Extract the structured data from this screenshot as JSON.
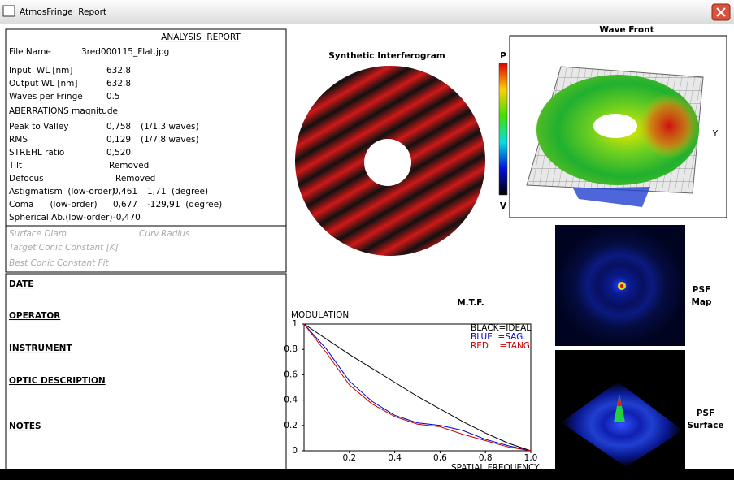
{
  "window": {
    "title": "AtmosFringe  Report"
  },
  "report": {
    "title": "ANALYSIS  REPORT",
    "rows": [
      [
        "File Name",
        "3red000115_Flat.jpg"
      ],
      [
        "Input  WL [nm]",
        "632.8"
      ],
      [
        "Output WL [nm]",
        "632.8"
      ],
      [
        "Waves per Fringe",
        "0.5"
      ]
    ],
    "section": "ABERRATIONS magnitude",
    "aberrations": [
      [
        "Peak to Valley",
        "0,758",
        "(1/1,3 waves)"
      ],
      [
        "RMS",
        "0,129",
        "(1/7,8 waves)"
      ],
      [
        "STREHL ratio",
        "0,520"
      ],
      [
        "Tilt",
        "Removed"
      ],
      [
        "Defocus",
        "Removed"
      ],
      [
        "Astigmatism  (low-order)",
        "0,461",
        "1,71  (degree)"
      ],
      [
        "Coma      (low-order)",
        "0,677",
        "-129,91  (degree)"
      ],
      [
        "Spherical Ab.(low-order)",
        "-0,470"
      ]
    ],
    "surface": {
      "diam": "Surface Diam",
      "radius": "Curv.Radius",
      "target_conic": "Target Conic Constant [K]",
      "best_conic": "Best Conic Constant Fit"
    },
    "fields": [
      "DATE",
      "OPERATOR",
      "INSTRUMENT",
      "OPTIC DESCRIPTION",
      "NOTES"
    ]
  },
  "interferogram": {
    "title": "Synthetic Interferogram"
  },
  "colorbar": {
    "top": "P",
    "bottom": "V"
  },
  "wavefront": {
    "title": "Wave Front",
    "axis": "Y"
  },
  "psf_map": {
    "lines": [
      "PSF",
      "Map"
    ]
  },
  "psf_surface": {
    "lines": [
      "PSF",
      "Surface"
    ]
  },
  "chart_data": {
    "type": "line",
    "title": "M.T.F.",
    "y_label": "MODULATION",
    "x_label": "SPATIAL FREQUENCY",
    "x": [
      0,
      0.1,
      0.2,
      0.3,
      0.4,
      0.5,
      0.6,
      0.7,
      0.8,
      0.9,
      1.0
    ],
    "series": [
      {
        "name": "BLACK=IDEAL",
        "color": "#000000",
        "values": [
          1,
          0.88,
          0.76,
          0.65,
          0.54,
          0.43,
          0.33,
          0.23,
          0.14,
          0.06,
          0
        ]
      },
      {
        "name": "BLUE  =SAG.",
        "color": "#0000cc",
        "values": [
          1,
          0.8,
          0.55,
          0.39,
          0.28,
          0.22,
          0.2,
          0.16,
          0.09,
          0.04,
          0
        ]
      },
      {
        "name": "RED    =TANG",
        "color": "#cc0000",
        "values": [
          1,
          0.77,
          0.52,
          0.37,
          0.27,
          0.21,
          0.19,
          0.13,
          0.08,
          0.03,
          0
        ]
      }
    ],
    "xlim": [
      0,
      1
    ],
    "ylim": [
      0,
      1
    ],
    "xticks": [
      {
        "value": 0.2,
        "label": "0,2"
      },
      {
        "value": 0.4,
        "label": "0,4"
      },
      {
        "value": 0.6,
        "label": "0,6"
      },
      {
        "value": 0.8,
        "label": "0,8"
      },
      {
        "value": 1.0,
        "label": "1,0"
      }
    ],
    "yticks": [
      0,
      0.2,
      0.4,
      0.6,
      0.8,
      1
    ]
  }
}
